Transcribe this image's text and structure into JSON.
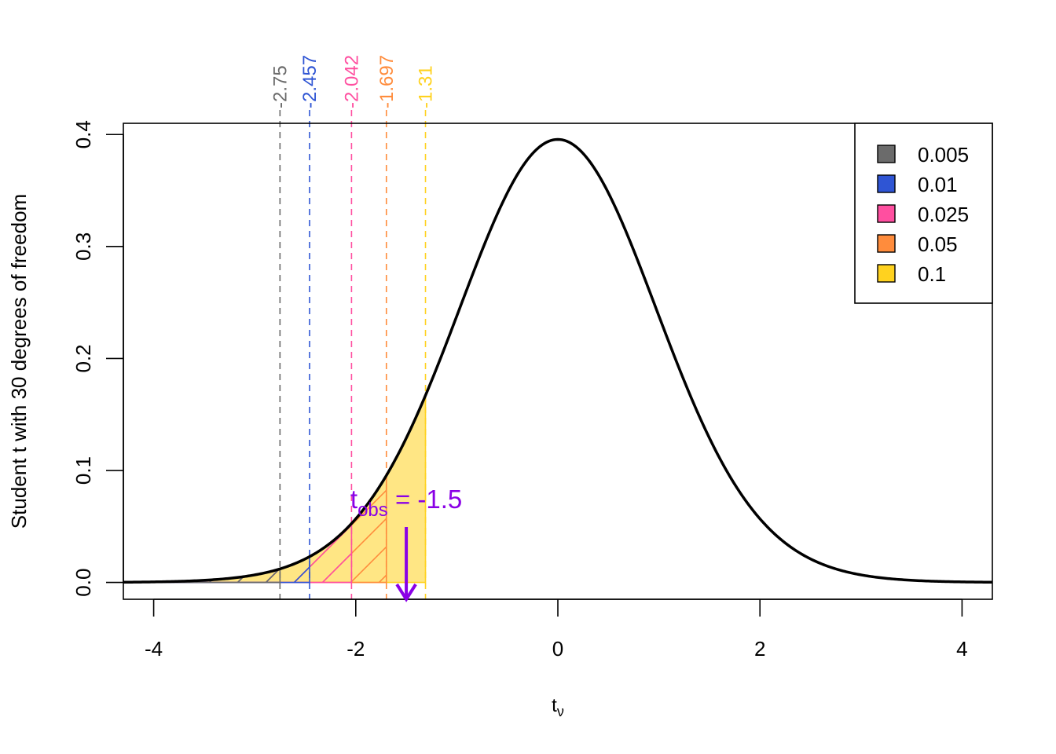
{
  "chart_data": {
    "type": "area",
    "distribution": "student-t",
    "df": 30,
    "xlabel": "t",
    "xlabel_subscript": "ν",
    "ylabel": "Student t with 30 degrees of freedom",
    "xlim": [
      -4.3,
      4.3
    ],
    "ylim": [
      -0.015,
      0.41
    ],
    "xticks": [
      "-4",
      "-2",
      "0",
      "2",
      "4"
    ],
    "xtick_values": [
      -4,
      -2,
      0,
      2,
      4
    ],
    "yticks": [
      "0.0",
      "0.1",
      "0.2",
      "0.3",
      "0.4"
    ],
    "ytick_values": [
      0.0,
      0.1,
      0.2,
      0.3,
      0.4
    ],
    "grid": false,
    "critical_values": [
      {
        "alpha": "0.005",
        "t": -2.75,
        "label": "-2.75",
        "color": "#6b6b6b",
        "fill": "#6b6b6b"
      },
      {
        "alpha": "0.01",
        "t": -2.457,
        "label": "-2.457",
        "color": "#2f55d4",
        "fill": "#2f55d4"
      },
      {
        "alpha": "0.025",
        "t": -2.042,
        "label": "-2.042",
        "color": "#ff4fa0",
        "fill": "#ff4fa0"
      },
      {
        "alpha": "0.05",
        "t": -1.697,
        "label": "-1.697",
        "color": "#ff8c3c",
        "fill": "#ff8c3c"
      },
      {
        "alpha": "0.1",
        "t": -1.31,
        "label": "-1.31",
        "color": "#ffd21f",
        "fill": "#ffd21f"
      }
    ],
    "legend": {
      "position": "top-right",
      "entries": [
        "0.005",
        "0.01",
        "0.025",
        "0.05",
        "0.1"
      ]
    },
    "observed": {
      "label_main": "t",
      "label_sub": "obs",
      "label_rest": " = -1.5",
      "value": -1.5,
      "color": "#8a00e6"
    }
  }
}
